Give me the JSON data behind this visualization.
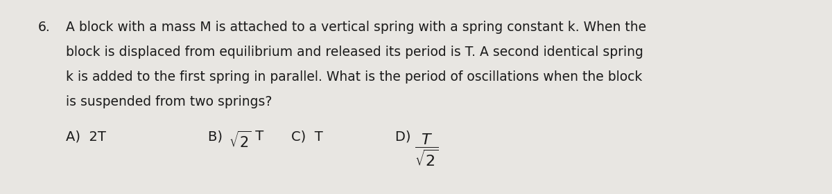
{
  "background_color": "#e8e6e2",
  "text_color": "#1a1a1a",
  "question_number": "6.",
  "question_line1": "A block with a mass M is attached to a vertical spring with a spring constant k. When the",
  "question_line2": "block is displaced from equilibrium and released its period is T. A second identical spring",
  "question_line3": "k is added to the first spring in parallel. What is the period of oscillations when the block",
  "question_line4": "is suspended from two springs?",
  "answer_A": "A)  2T",
  "answer_C": "C)  T",
  "font_size_question": 13.5,
  "font_size_answers": 14.0,
  "fig_width": 12.0,
  "fig_height": 2.81
}
